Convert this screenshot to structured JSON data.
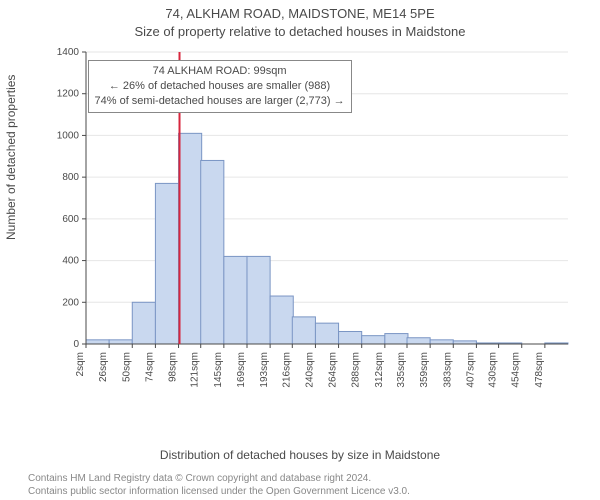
{
  "title_line1": "74, ALKHAM ROAD, MAIDSTONE, ME14 5PE",
  "title_line2": "Size of property relative to detached houses in Maidstone",
  "y_axis_label": "Number of detached properties",
  "x_axis_label": "Distribution of detached houses by size in Maidstone",
  "footer_line1": "Contains HM Land Registry data © Crown copyright and database right 2024.",
  "footer_line2": "Contains public sector information licensed under the Open Government Licence v3.0.",
  "annotation": {
    "line1": "74 ALKHAM ROAD: 99sqm",
    "line2": "← 26% of detached houses are smaller (988)",
    "line3": "74% of semi-detached houses are larger (2,773) →"
  },
  "chart": {
    "type": "histogram",
    "background_color": "#ffffff",
    "grid_color": "#e6e6e6",
    "axis_color": "#4a4a4a",
    "bar_fill": "#c9d8ef",
    "bar_stroke": "#7a95c4",
    "marker_line_color": "#d7263d",
    "marker_x_value": 99,
    "tick_fontsize": 10,
    "label_fontsize": 12,
    "title_fontsize": 13,
    "bin_width_sqm": 24,
    "x_ticks": [
      2,
      26,
      50,
      74,
      98,
      121,
      145,
      169,
      193,
      216,
      240,
      264,
      288,
      312,
      335,
      359,
      383,
      407,
      430,
      454,
      478
    ],
    "x_tick_labels": [
      "2sqm",
      "26sqm",
      "50sqm",
      "74sqm",
      "98sqm",
      "121sqm",
      "145sqm",
      "169sqm",
      "193sqm",
      "216sqm",
      "240sqm",
      "264sqm",
      "288sqm",
      "312sqm",
      "335sqm",
      "359sqm",
      "383sqm",
      "407sqm",
      "430sqm",
      "454sqm",
      "478sqm"
    ],
    "y_ticks": [
      0,
      200,
      400,
      600,
      800,
      1000,
      1200,
      1400
    ],
    "ylim": [
      0,
      1400
    ],
    "xlim": [
      2,
      502
    ],
    "bars": [
      {
        "x0": 2,
        "count": 20
      },
      {
        "x0": 26,
        "count": 20
      },
      {
        "x0": 50,
        "count": 200
      },
      {
        "x0": 74,
        "count": 770
      },
      {
        "x0": 98,
        "count": 1010
      },
      {
        "x0": 121,
        "count": 880
      },
      {
        "x0": 145,
        "count": 420
      },
      {
        "x0": 169,
        "count": 420
      },
      {
        "x0": 193,
        "count": 230
      },
      {
        "x0": 216,
        "count": 130
      },
      {
        "x0": 240,
        "count": 100
      },
      {
        "x0": 264,
        "count": 60
      },
      {
        "x0": 288,
        "count": 40
      },
      {
        "x0": 312,
        "count": 50
      },
      {
        "x0": 335,
        "count": 30
      },
      {
        "x0": 359,
        "count": 20
      },
      {
        "x0": 383,
        "count": 15
      },
      {
        "x0": 407,
        "count": 5
      },
      {
        "x0": 430,
        "count": 5
      },
      {
        "x0": 454,
        "count": 0
      },
      {
        "x0": 478,
        "count": 5
      }
    ]
  }
}
